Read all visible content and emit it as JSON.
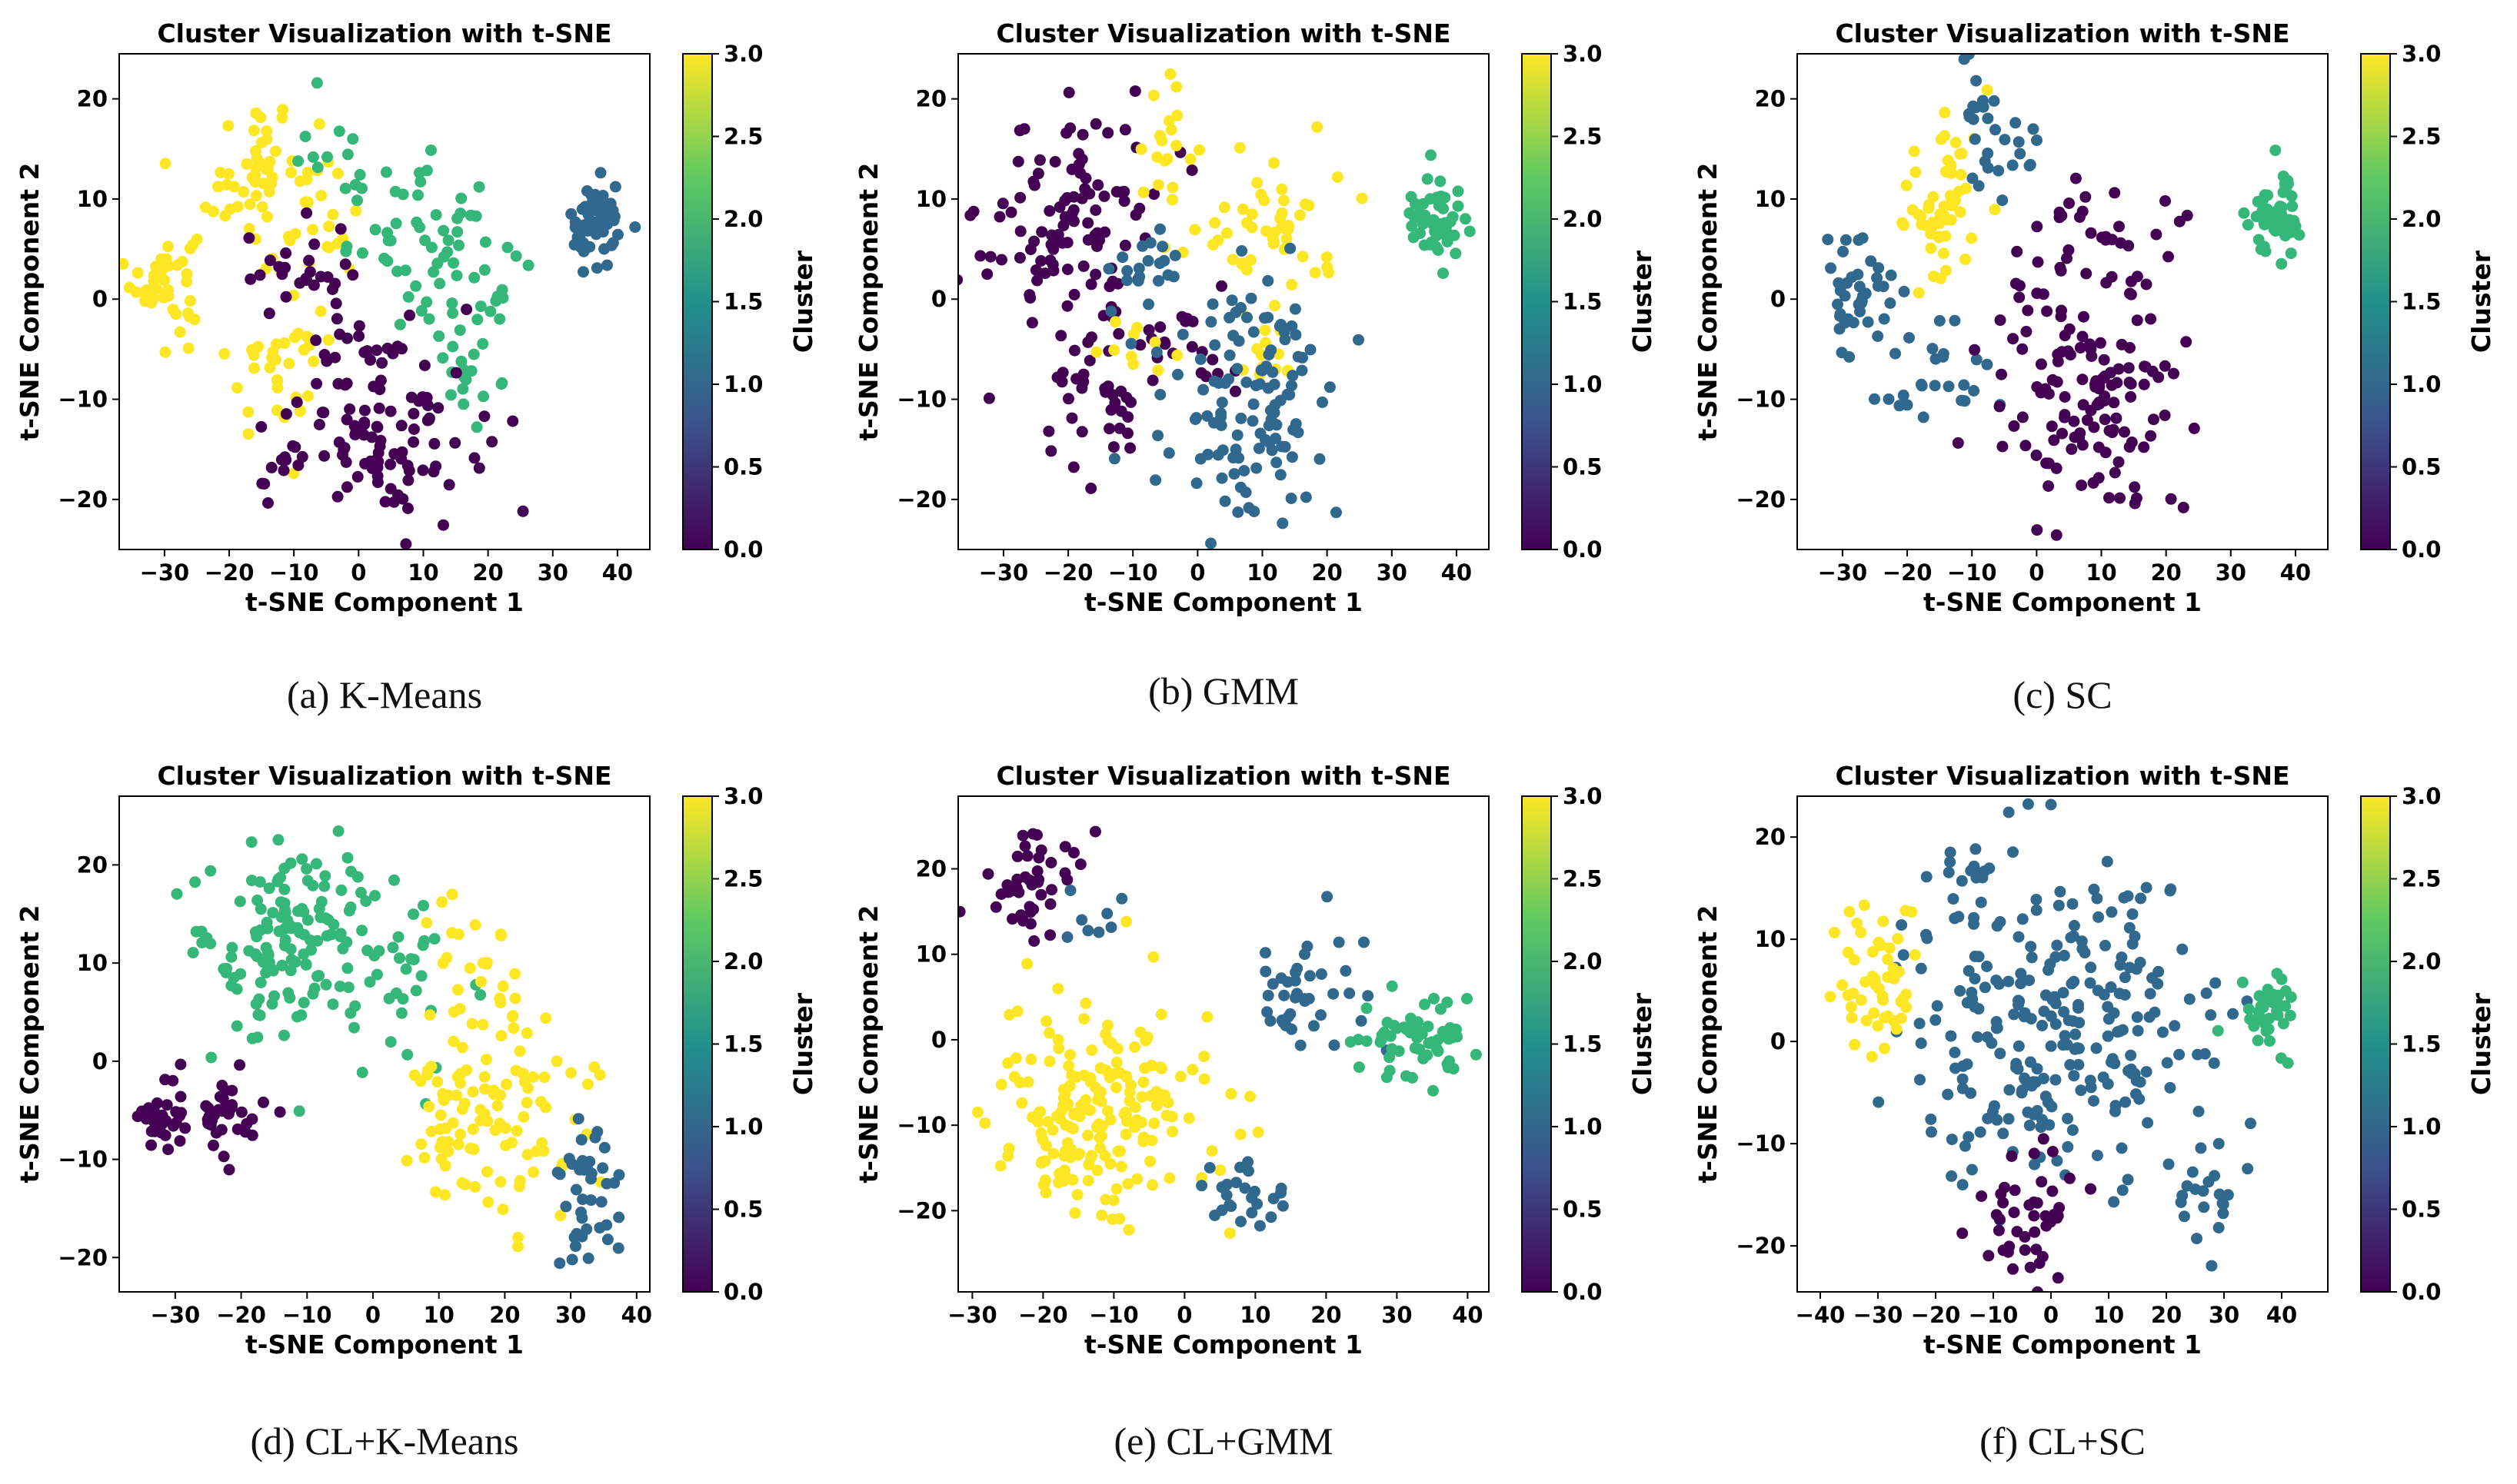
{
  "figure": {
    "colormap": [
      "#440154",
      "#3b528b",
      "#21918c",
      "#5ec962",
      "#fde725"
    ],
    "cluster_colors": [
      "#440154",
      "#31688e",
      "#35b779",
      "#fde725"
    ]
  },
  "chart_data": [
    {
      "id": "a",
      "type": "scatter",
      "caption": "(a) K-Means",
      "title": "Cluster Visualization with t-SNE",
      "xlabel": "t-SNE Component 1",
      "ylabel": "t-SNE Component 2",
      "xlim": [
        -37,
        45
      ],
      "ylim": [
        -25,
        24.5
      ],
      "xticks": [
        -30,
        -20,
        -10,
        0,
        10,
        20,
        30,
        40
      ],
      "yticks": [
        -20,
        -10,
        0,
        10,
        20
      ],
      "xtick_labels": [
        "−30",
        "−20",
        "−10",
        "0",
        "10",
        "20",
        "30",
        "40"
      ],
      "ytick_labels": [
        "−20",
        "−10",
        "0",
        "10",
        "20"
      ],
      "colorbar": {
        "label": "Cluster",
        "range": [
          0.0,
          3.0
        ],
        "ticks": [
          "0.0",
          "0.5",
          "1.0",
          "1.5",
          "2.0",
          "2.5",
          "3.0"
        ]
      },
      "clusters": [
        {
          "value": 3,
          "centers": [
            [
              -30,
              2,
              3,
              3,
              45
            ],
            [
              -15,
              12,
              5,
              5,
              60
            ],
            [
              -12,
              -7,
              5,
              4,
              35
            ],
            [
              -5,
              8,
              3,
              3,
              12
            ]
          ]
        },
        {
          "value": 2,
          "centers": [
            [
              12,
              5,
              8,
              5,
              60
            ],
            [
              18,
              -5,
              4,
              4,
              25
            ],
            [
              -5,
              14,
              3,
              3,
              12
            ]
          ]
        },
        {
          "value": 0,
          "centers": [
            [
              5,
              -12,
              8,
              6,
              110
            ],
            [
              -10,
              3,
              5,
              3,
              25
            ],
            [
              -12,
              -18,
              3,
              3,
              12
            ]
          ]
        },
        {
          "value": 1,
          "centers": [
            [
              37,
              7.5,
              2.5,
              2.5,
              55
            ]
          ]
        }
      ]
    },
    {
      "id": "b",
      "type": "scatter",
      "caption": "(b) GMM",
      "title": "Cluster Visualization with t-SNE",
      "xlabel": "t-SNE Component 1",
      "ylabel": "t-SNE Component 2",
      "xlim": [
        -37,
        45
      ],
      "ylim": [
        -25,
        24.5
      ],
      "xticks": [
        -30,
        -20,
        -10,
        0,
        10,
        20,
        30,
        40
      ],
      "yticks": [
        -20,
        -10,
        0,
        10,
        20
      ],
      "xtick_labels": [
        "−30",
        "−20",
        "−10",
        "0",
        "10",
        "20",
        "30",
        "40"
      ],
      "ytick_labels": [
        "−20",
        "−10",
        "0",
        "10",
        "20"
      ],
      "colorbar": {
        "label": "Cluster",
        "range": [
          0.0,
          3.0
        ],
        "ticks": [
          "0.0",
          "0.5",
          "1.0",
          "1.5",
          "2.0",
          "2.5",
          "3.0"
        ]
      },
      "clusters": [
        {
          "value": 0,
          "centers": [
            [
              -20,
              8,
              8,
              7,
              110
            ],
            [
              -15,
              -10,
              6,
              5,
              40
            ],
            [
              0,
              -5,
              4,
              3,
              18
            ]
          ]
        },
        {
          "value": 3,
          "centers": [
            [
              10,
              8,
              8,
              4,
              50
            ],
            [
              -5,
              16,
              3,
              4,
              18
            ],
            [
              10,
              -5,
              4,
              3,
              15
            ],
            [
              -10,
              -5,
              3,
              3,
              10
            ]
          ]
        },
        {
          "value": 1,
          "centers": [
            [
              8,
              -10,
              8,
              7,
              120
            ],
            [
              -8,
              3,
              4,
              2,
              20
            ]
          ]
        },
        {
          "value": 2,
          "centers": [
            [
              37,
              8.5,
              2.5,
              2.2,
              50
            ]
          ]
        }
      ]
    },
    {
      "id": "c",
      "type": "scatter",
      "caption": "(c) SC",
      "title": "Cluster Visualization with t-SNE",
      "xlabel": "t-SNE Component 1",
      "ylabel": "t-SNE Component 2",
      "xlim": [
        -37,
        45
      ],
      "ylim": [
        -25,
        24.5
      ],
      "xticks": [
        -30,
        -20,
        -10,
        0,
        10,
        20,
        30,
        40
      ],
      "yticks": [
        -20,
        -10,
        0,
        10,
        20
      ],
      "xtick_labels": [
        "−30",
        "−20",
        "−10",
        "0",
        "10",
        "20",
        "30",
        "40"
      ],
      "ytick_labels": [
        "−20",
        "−10",
        "0",
        "10",
        "20"
      ],
      "colorbar": {
        "label": "Cluster",
        "range": [
          0.0,
          3.0
        ],
        "ticks": [
          "0.0",
          "0.5",
          "1.0",
          "1.5",
          "2.0",
          "2.5",
          "3.0"
        ]
      },
      "clusters": [
        {
          "value": 3,
          "centers": [
            [
              -14,
              10,
              4,
              5,
              55
            ]
          ]
        },
        {
          "value": 1,
          "centers": [
            [
              -28,
              0,
              4,
              4,
              40
            ],
            [
              -15,
              -8,
              5,
              4,
              25
            ],
            [
              -5,
              14,
              3,
              4,
              20
            ],
            [
              -10,
              20,
              3,
              2,
              10
            ]
          ]
        },
        {
          "value": 0,
          "centers": [
            [
              8,
              -10,
              9,
              7,
              130
            ],
            [
              10,
              6,
              7,
              4,
              35
            ]
          ]
        },
        {
          "value": 2,
          "centers": [
            [
              37,
              8,
              2.5,
              2.5,
              55
            ]
          ]
        }
      ]
    },
    {
      "id": "d",
      "type": "scatter",
      "caption": "(d) CL+K-Means",
      "title": "Cluster Visualization with t-SNE",
      "xlabel": "t-SNE Component 1",
      "ylabel": "t-SNE Component 2",
      "xlim": [
        -38.5,
        42
      ],
      "ylim": [
        -23.5,
        27
      ],
      "xticks": [
        -30,
        -20,
        -10,
        0,
        10,
        20,
        30,
        40
      ],
      "yticks": [
        -20,
        -10,
        0,
        10,
        20
      ],
      "xtick_labels": [
        "−30",
        "−20",
        "−10",
        "0",
        "10",
        "20",
        "30",
        "40"
      ],
      "ytick_labels": [
        "−20",
        "−10",
        "0",
        "10",
        "20"
      ],
      "colorbar": {
        "label": "Cluster",
        "range": [
          0.0,
          3.0
        ],
        "ticks": [
          "0.0",
          "0.5",
          "1.0",
          "1.5",
          "2.0",
          "2.5",
          "3.0"
        ]
      },
      "clusters": [
        {
          "value": 2,
          "centers": [
            [
              -12,
              12,
              9,
              6,
              150
            ],
            [
              5,
              5,
              5,
              5,
              20
            ]
          ]
        },
        {
          "value": 3,
          "centers": [
            [
              18,
              -5,
              8,
              7,
              110
            ],
            [
              15,
              10,
              4,
              4,
              20
            ]
          ]
        },
        {
          "value": 0,
          "centers": [
            [
              -32,
              -6,
              2.5,
              3,
              30
            ],
            [
              -22,
              -6,
              4,
              3,
              35
            ]
          ]
        },
        {
          "value": 1,
          "centers": [
            [
              33,
              -14,
              2.5,
              4,
              40
            ]
          ]
        }
      ]
    },
    {
      "id": "e",
      "type": "scatter",
      "caption": "(e) CL+GMM",
      "title": "Cluster Visualization with t-SNE",
      "xlabel": "t-SNE Component 1",
      "ylabel": "t-SNE Component 2",
      "xlim": [
        -32,
        43
      ],
      "ylim": [
        -29.5,
        28.5
      ],
      "xticks": [
        -30,
        -20,
        -10,
        0,
        10,
        20,
        30,
        40
      ],
      "yticks": [
        -20,
        -10,
        0,
        10,
        20
      ],
      "xtick_labels": [
        "−30",
        "−20",
        "−10",
        "0",
        "10",
        "20",
        "30",
        "40"
      ],
      "ytick_labels": [
        "−20",
        "−10",
        "0",
        "10",
        "20"
      ],
      "colorbar": {
        "label": "Cluster",
        "range": [
          0.0,
          3.0
        ],
        "ticks": [
          "0.0",
          "0.5",
          "1.0",
          "1.5",
          "2.0",
          "2.5",
          "3.0"
        ]
      },
      "clusters": [
        {
          "value": 3,
          "centers": [
            [
              -12,
              -8,
              9,
              8,
              190
            ]
          ]
        },
        {
          "value": 0,
          "centers": [
            [
              -22,
              18,
              4,
              4,
              45
            ]
          ]
        },
        {
          "value": 1,
          "centers": [
            [
              16,
              6,
              5,
              4,
              40
            ],
            [
              8,
              -18,
              4,
              3,
              25
            ],
            [
              -12,
              13,
              3,
              3,
              8
            ]
          ]
        },
        {
          "value": 2,
          "centers": [
            [
              33,
              0,
              5,
              3,
              60
            ]
          ]
        }
      ]
    },
    {
      "id": "f",
      "type": "scatter",
      "caption": "(f) CL+SC",
      "title": "Cluster Visualization with t-SNE",
      "xlabel": "t-SNE Component 1",
      "ylabel": "t-SNE Component 2",
      "xlim": [
        -44,
        48
      ],
      "ylim": [
        -24.5,
        24
      ],
      "xticks": [
        -40,
        -30,
        -20,
        -10,
        0,
        10,
        20,
        30,
        40
      ],
      "yticks": [
        -20,
        -10,
        0,
        10,
        20
      ],
      "xtick_labels": [
        "−40",
        "−30",
        "−20",
        "−10",
        "0",
        "10",
        "20",
        "30",
        "40"
      ],
      "ytick_labels": [
        "−20",
        "−10",
        "0",
        "10",
        "20"
      ],
      "colorbar": {
        "label": "Cluster",
        "range": [
          0.0,
          3.0
        ],
        "ticks": [
          "0.0",
          "0.5",
          "1.0",
          "1.5",
          "2.0",
          "2.5",
          "3.0"
        ]
      },
      "clusters": [
        {
          "value": 1,
          "centers": [
            [
              0,
              2,
              16,
              9,
              250
            ],
            [
              -14,
              16,
              3,
              3,
              20
            ],
            [
              25,
              -15,
              4,
              3,
              20
            ]
          ]
        },
        {
          "value": 3,
          "centers": [
            [
              -30,
              7,
              4,
              5,
              50
            ]
          ]
        },
        {
          "value": 0,
          "centers": [
            [
              -4,
              -17,
              5,
              4,
              45
            ]
          ]
        },
        {
          "value": 2,
          "centers": [
            [
              38,
              3,
              3,
              2.5,
              35
            ]
          ]
        }
      ]
    }
  ]
}
